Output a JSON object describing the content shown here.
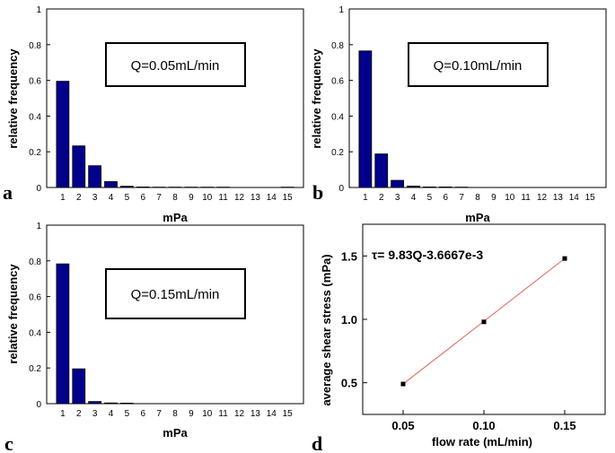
{
  "colors": {
    "bar": "#00008B",
    "line": "#E06060",
    "marker": "#000000"
  },
  "chart_data": [
    {
      "type": "bar",
      "panel": "a",
      "annotation": "Q=0.05mL/min",
      "xlabel": "mPa",
      "ylabel": "relative frequency",
      "categories": [
        "1",
        "2",
        "3",
        "4",
        "5",
        "6",
        "7",
        "8",
        "9",
        "10",
        "11",
        "12",
        "13",
        "14",
        "15"
      ],
      "values": [
        0.595,
        0.233,
        0.122,
        0.033,
        0.007,
        0.003,
        0.002,
        0.002,
        0.002,
        0.002,
        0.002,
        0,
        0,
        0,
        0.002
      ],
      "ylim": [
        0,
        1
      ],
      "yticks": [
        "0",
        "0.2",
        "0.4",
        "0.6",
        "0.8",
        "1"
      ]
    },
    {
      "type": "bar",
      "panel": "b",
      "annotation": "Q=0.10mL/min",
      "xlabel": "mPa",
      "ylabel": "relative frequency",
      "categories": [
        "1",
        "2",
        "3",
        "4",
        "5",
        "6",
        "7",
        "8",
        "9",
        "10",
        "11",
        "12",
        "13",
        "14",
        "15"
      ],
      "values": [
        0.765,
        0.188,
        0.04,
        0.008,
        0.003,
        0.003,
        0.002,
        0,
        0,
        0,
        0,
        0,
        0,
        0,
        0
      ],
      "ylim": [
        0,
        1
      ],
      "yticks": [
        "0",
        "0.2",
        "0.4",
        "0.6",
        "0.8",
        "1"
      ]
    },
    {
      "type": "bar",
      "panel": "c",
      "annotation": "Q=0.15mL/min",
      "xlabel": "mPa",
      "ylabel": "relative frequency",
      "categories": [
        "1",
        "2",
        "3",
        "4",
        "5",
        "6",
        "7",
        "8",
        "9",
        "10",
        "11",
        "12",
        "13",
        "14",
        "15"
      ],
      "values": [
        0.783,
        0.195,
        0.012,
        0.004,
        0.003,
        0,
        0,
        0,
        0,
        0,
        0,
        0,
        0,
        0,
        0
      ],
      "ylim": [
        0,
        1
      ],
      "yticks": [
        "0",
        "0.2",
        "0.4",
        "0.6",
        "0.8",
        "1"
      ]
    },
    {
      "type": "scatter",
      "panel": "d",
      "annotation": "τ= 9.83Q-3.6667e-3",
      "xlabel": "flow rate (mL/min)",
      "ylabel": "average shear stress (mPa)",
      "x": [
        0.05,
        0.1,
        0.15
      ],
      "y": [
        0.49,
        0.98,
        1.48
      ],
      "fit_line": {
        "x": [
          0.05,
          0.15
        ],
        "y": [
          0.49,
          1.48
        ]
      },
      "xlim": [
        0.025,
        0.175
      ],
      "ylim": [
        0.25,
        1.75
      ],
      "xticks": [
        "0.05",
        "0.10",
        "0.15"
      ],
      "yticks": [
        "0.5",
        "1.0",
        "1.5"
      ]
    }
  ]
}
